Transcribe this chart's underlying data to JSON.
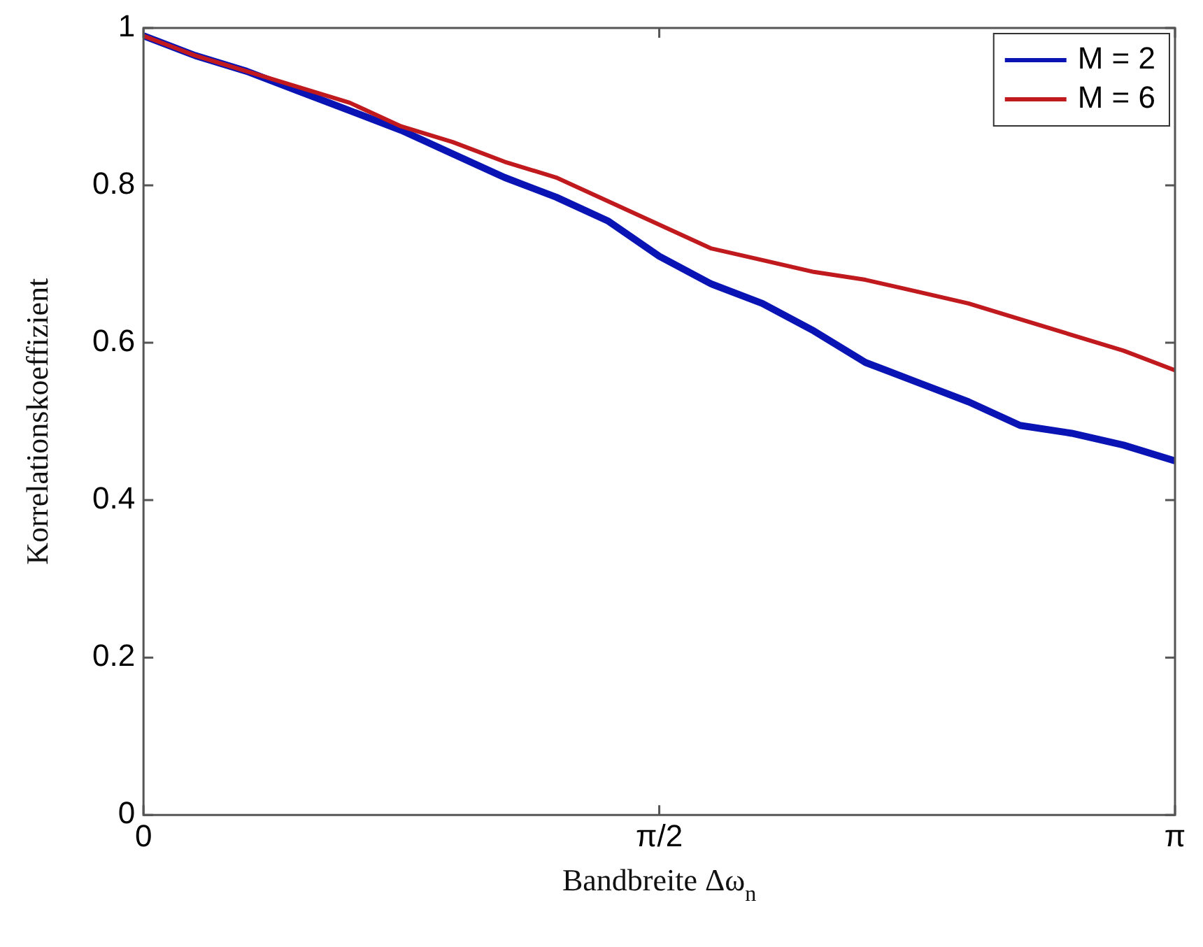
{
  "chart_data": {
    "type": "line",
    "xlabel": "Bandbreite Δω$_{n}$",
    "ylabel": "Korrelationskoeffizient",
    "x": [
      0,
      0.157,
      0.314,
      0.471,
      0.628,
      0.785,
      0.942,
      1.1,
      1.257,
      1.414,
      1.571,
      1.728,
      1.885,
      2.042,
      2.199,
      2.356,
      2.513,
      2.67,
      2.827,
      2.985,
      3.142
    ],
    "series": [
      {
        "name": "M = 2",
        "color": "#0a14b4",
        "values": [
          0.99,
          0.965,
          0.945,
          0.92,
          0.895,
          0.87,
          0.84,
          0.81,
          0.785,
          0.755,
          0.71,
          0.675,
          0.65,
          0.615,
          0.575,
          0.55,
          0.525,
          0.495,
          0.485,
          0.47,
          0.45
        ]
      },
      {
        "name": "M = 6",
        "color": "#c01a1f",
        "values": [
          0.99,
          0.965,
          0.945,
          0.925,
          0.905,
          0.875,
          0.855,
          0.83,
          0.81,
          0.78,
          0.75,
          0.72,
          0.705,
          0.69,
          0.68,
          0.665,
          0.65,
          0.63,
          0.61,
          0.59,
          0.565
        ]
      }
    ],
    "xlim": [
      0,
      3.142
    ],
    "xticks": [
      0,
      {
        "value": 1.571,
        "label": "π/2"
      },
      {
        "value": 3.142,
        "label": "π"
      }
    ],
    "ylim": [
      0,
      1
    ],
    "yticks": [
      0,
      0.2,
      0.4,
      0.6,
      0.8,
      1
    ],
    "legend": "top right",
    "marker": "none",
    "line_style": "solid",
    "grid": false
  }
}
